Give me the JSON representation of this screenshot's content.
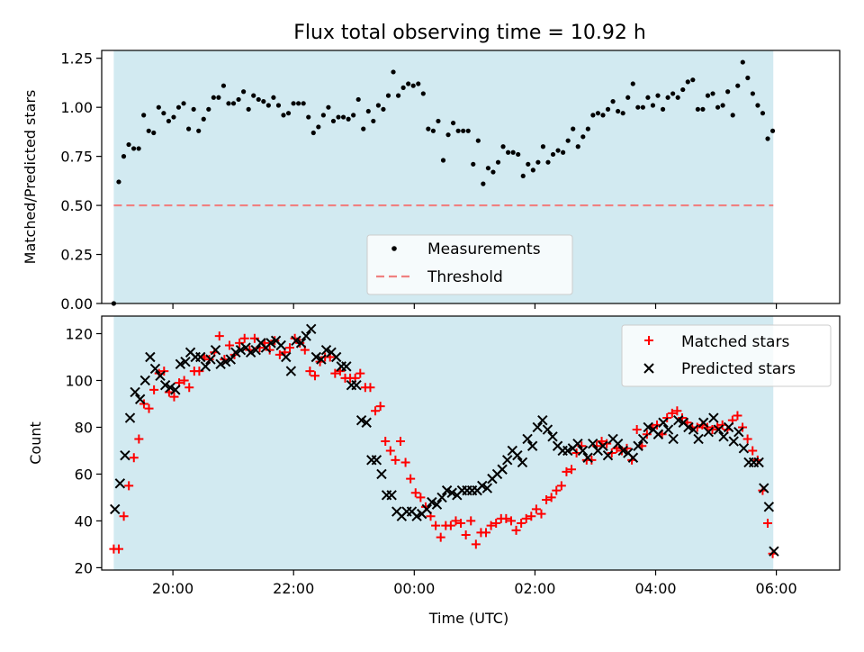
{
  "figure_title": "Flux total observing time = 10.92 h",
  "chart_data": [
    {
      "type": "scatter",
      "ylabel": "Matched/Predicted stars",
      "xlim": [
        -1.18,
        11.05
      ],
      "ylim": [
        0,
        1.29
      ],
      "yticks": [
        0.0,
        0.25,
        0.5,
        0.75,
        1.0,
        1.25
      ],
      "ytick_labels": [
        "0.00",
        "0.25",
        "0.50",
        "0.75",
        "1.00",
        "1.25"
      ],
      "shaded_span": {
        "x0": -0.98,
        "x1": 9.95,
        "color": "#add8e6"
      },
      "threshold": 0.5,
      "legend": {
        "position": "bottom-center",
        "entries": [
          "Measurements",
          "Threshold"
        ]
      },
      "series": [
        {
          "name": "Measurements",
          "color": "#000000",
          "marker": "dot",
          "values": [
            0.0,
            0.62,
            0.75,
            0.81,
            0.79,
            0.79,
            0.96,
            0.88,
            0.87,
            1.0,
            0.97,
            0.93,
            0.95,
            1.0,
            1.02,
            0.89,
            0.99,
            0.88,
            0.94,
            0.99,
            1.05,
            1.05,
            1.11,
            1.02,
            1.02,
            1.04,
            1.08,
            0.99,
            1.06,
            1.04,
            1.03,
            1.01,
            1.05,
            1.01,
            0.96,
            0.97,
            1.02,
            1.02,
            1.02,
            0.95,
            0.87,
            0.9,
            0.96,
            1.0,
            0.93,
            0.95,
            0.95,
            0.94,
            0.96,
            1.04,
            0.89,
            0.98,
            0.93,
            1.01,
            0.99,
            1.06,
            1.18,
            1.06,
            1.1,
            1.12,
            1.11,
            1.12,
            1.07,
            0.89,
            0.88,
            0.93,
            0.73,
            0.86,
            0.92,
            0.88,
            0.88,
            0.88,
            0.71,
            0.83,
            0.61,
            0.69,
            0.67,
            0.72,
            0.8,
            0.77,
            0.77,
            0.76,
            0.65,
            0.71,
            0.68,
            0.72,
            0.8,
            0.72,
            0.76,
            0.78,
            0.77,
            0.83,
            0.89,
            0.8,
            0.85,
            0.89,
            0.96,
            0.97,
            0.96,
            0.99,
            1.03,
            0.98,
            0.97,
            1.05,
            1.12,
            1.0,
            1.0,
            1.05,
            1.01,
            1.06,
            0.99,
            1.05,
            1.07,
            1.05,
            1.09,
            1.13,
            1.14,
            0.99,
            0.99,
            1.06,
            1.07,
            1.0,
            1.01,
            1.08,
            0.96,
            1.11,
            1.23,
            1.15,
            1.07,
            1.01,
            0.97,
            0.84,
            0.88
          ]
        }
      ]
    },
    {
      "type": "scatter",
      "xlabel": "Time (UTC)",
      "ylabel": "Count",
      "xlim": [
        -1.18,
        11.05
      ],
      "ylim": [
        19,
        127.5
      ],
      "xticks": [
        0,
        2,
        4,
        6,
        8,
        10
      ],
      "xtick_labels": [
        "20:00",
        "22:00",
        "00:00",
        "02:00",
        "04:00",
        "06:00"
      ],
      "yticks": [
        20,
        40,
        60,
        80,
        100,
        120
      ],
      "ytick_labels": [
        "20",
        "40",
        "60",
        "80",
        "100",
        "120"
      ],
      "shaded_span": {
        "x0": -0.98,
        "x1": 9.95,
        "color": "#add8e6"
      },
      "legend": {
        "position": "top-right",
        "entries": [
          "Matched stars",
          "Predicted stars"
        ]
      },
      "series": [
        {
          "name": "Matched stars",
          "color": "#ff0000",
          "marker": "plus",
          "values": [
            28,
            28,
            42,
            55,
            67,
            75,
            90,
            88,
            96,
            103,
            104,
            95,
            93,
            99,
            100,
            97,
            104,
            104,
            110,
            109,
            112,
            119,
            109,
            115,
            111,
            116,
            118,
            113,
            118,
            114,
            116,
            113,
            117,
            111,
            112,
            114,
            118,
            116,
            113,
            104,
            102,
            108,
            110,
            110,
            103,
            104,
            101,
            101,
            101,
            103,
            97,
            97,
            87,
            89,
            74,
            70,
            66,
            74,
            65,
            58,
            52,
            50,
            46,
            42,
            38,
            33,
            38,
            38,
            40,
            39,
            34,
            40,
            30,
            35,
            35,
            38,
            39,
            41,
            41,
            40,
            36,
            39,
            41,
            42,
            45,
            43,
            49,
            50,
            53,
            55,
            61,
            62,
            69,
            72,
            66,
            66,
            72,
            74,
            73,
            69,
            71,
            70,
            71,
            66,
            79,
            72,
            77,
            80,
            81,
            77,
            84,
            86,
            87,
            84,
            82,
            80,
            80,
            81,
            80,
            79,
            80,
            81,
            79,
            83,
            85,
            80,
            75,
            70,
            66,
            53,
            39,
            26
          ]
        },
        {
          "name": "Predicted stars",
          "color": "#000000",
          "marker": "x",
          "values": [
            45,
            56,
            68,
            84,
            95,
            92,
            100,
            110,
            105,
            102,
            98,
            97,
            96,
            107,
            108,
            112,
            110,
            110,
            106,
            109,
            113,
            107,
            108,
            109,
            112,
            113,
            114,
            112,
            113,
            116,
            114,
            116,
            117,
            115,
            110,
            104,
            117,
            116,
            119,
            122,
            110,
            109,
            113,
            112,
            110,
            106,
            106,
            98,
            98,
            83,
            82,
            66,
            66,
            60,
            51,
            51,
            44,
            42,
            44,
            44,
            42,
            43,
            45,
            48,
            47,
            50,
            53,
            52,
            51,
            53,
            53,
            53,
            53,
            55,
            54,
            58,
            60,
            62,
            66,
            70,
            68,
            65,
            75,
            72,
            80,
            83,
            79,
            76,
            72,
            70,
            70,
            71,
            73,
            70,
            67,
            73,
            70,
            72,
            68,
            75,
            73,
            70,
            69,
            67,
            72,
            75,
            80,
            79,
            77,
            82,
            79,
            75,
            83,
            82,
            80,
            79,
            75,
            82,
            78,
            84,
            79,
            76,
            80,
            74,
            78,
            71,
            65,
            65,
            65,
            54,
            46,
            27
          ]
        }
      ]
    }
  ]
}
